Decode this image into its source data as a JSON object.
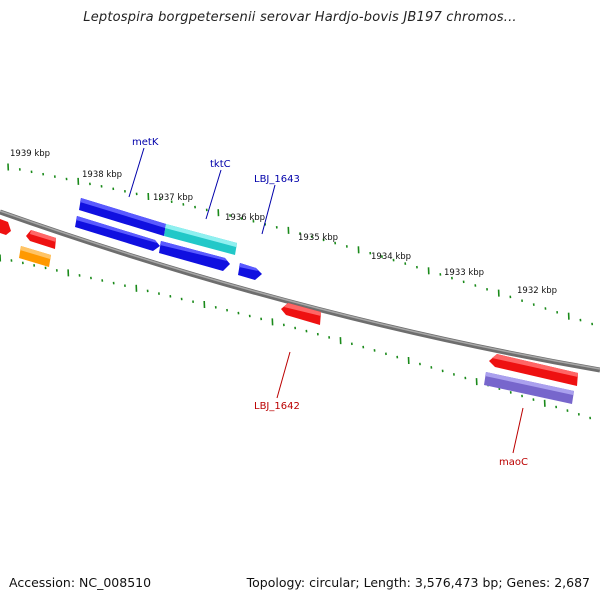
{
  "title": "Leptospira borgpetersenii serovar Hardjo-bovis JB197 chromos...",
  "footer": {
    "accession": "Accession: NC_008510",
    "topology": "Topology: circular; Length: 3,576,473 bp; Genes: 2,687"
  },
  "scale_labels": [
    "1939 kbp",
    "1938 kbp",
    "1937 kbp",
    "1936 kbp",
    "1935 kbp",
    "1934 kbp",
    "1933 kbp",
    "1932 kbp"
  ],
  "gene_labels": {
    "metK": "metK",
    "tktC": "tktC",
    "lbj1643": "LBJ_1643",
    "lbj1642": "LBJ_1642",
    "maoC": "maoC"
  },
  "colors": {
    "forward_cds": "#1010e0",
    "reverse_cds": "#ee1111",
    "teal_cds": "#22c8c8",
    "orange_cds": "#ff9900",
    "purple_cds": "#7766cc",
    "forward_label": "#0000aa",
    "reverse_label": "#bb0000",
    "tick": "#1a8a1a",
    "backbone": "#808080"
  }
}
